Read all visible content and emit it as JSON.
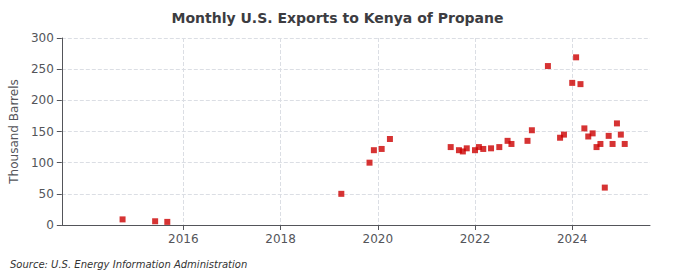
{
  "chart_data": {
    "type": "scatter",
    "title": "Monthly U.S. Exports to Kenya of Propane",
    "ylabel": "Thousand Barrels",
    "annotations": [
      "Source: U.S. Energy Information Administration"
    ],
    "color": "#cc0000",
    "marker": "square",
    "grid": true,
    "xlim": [
      2013.5,
      2025.6
    ],
    "xticks": [
      2016,
      2018,
      2020,
      2022,
      2024
    ],
    "ylim": [
      0,
      300
    ],
    "yticks": [
      0,
      50,
      100,
      150,
      200,
      250,
      300
    ],
    "x": [
      2014.75,
      2015.42,
      2015.67,
      2019.25,
      2019.83,
      2019.92,
      2020.08,
      2020.25,
      2021.5,
      2021.67,
      2021.75,
      2021.83,
      2022.0,
      2022.08,
      2022.17,
      2022.33,
      2022.5,
      2022.67,
      2022.75,
      2023.08,
      2023.17,
      2023.5,
      2023.75,
      2023.83,
      2024.0,
      2024.08,
      2024.17,
      2024.25,
      2024.33,
      2024.42,
      2024.5,
      2024.58,
      2024.67,
      2024.75,
      2024.83,
      2024.92,
      2025.0,
      2025.08
    ],
    "values": [
      9,
      6,
      5,
      50,
      100,
      120,
      122,
      138,
      125,
      120,
      118,
      123,
      120,
      125,
      122,
      123,
      125,
      135,
      130,
      135,
      152,
      255,
      140,
      145,
      228,
      269,
      226,
      155,
      142,
      147,
      125,
      130,
      60,
      143,
      130,
      163,
      145,
      130
    ]
  }
}
